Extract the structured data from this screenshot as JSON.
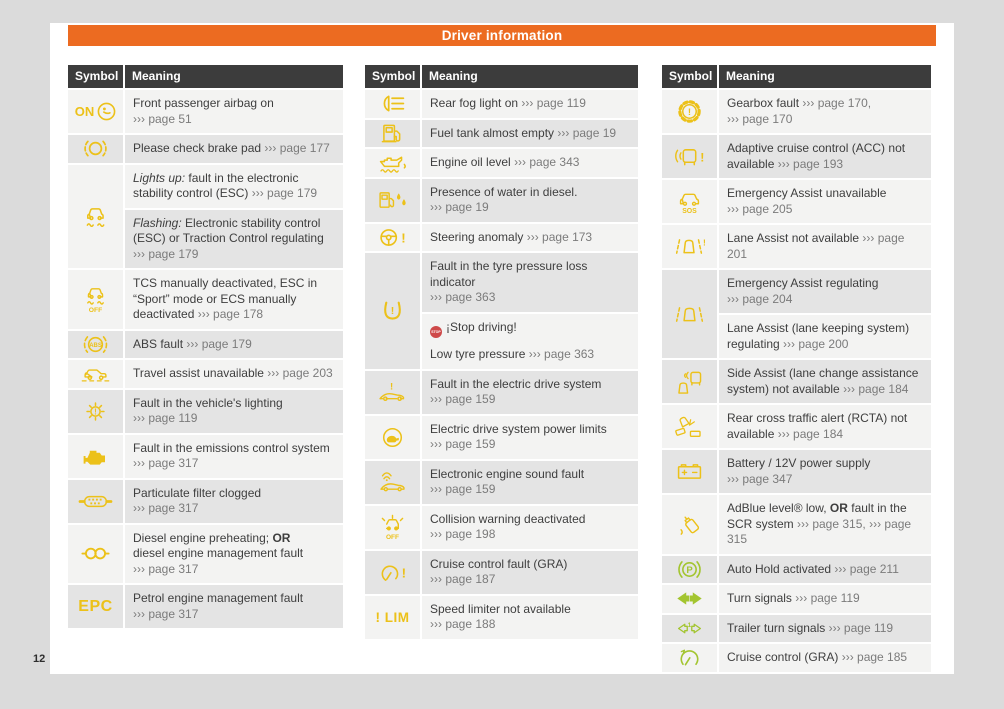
{
  "page": {
    "header": "Driver information",
    "page_number": "12",
    "colors": {
      "bg": "#dbdbdb",
      "orange": "#ec6b21",
      "headerbg": "#3c3c3c",
      "yellow": "#ecc119",
      "green": "#a3c530",
      "red": "#ce4949",
      "rowa": "#f3f3f2",
      "rowb": "#e4e4e4",
      "text": "#3e3e3e",
      "ref": "#7b7b7b"
    }
  },
  "tables": [
    {
      "headers": {
        "symbol": "Symbol",
        "meaning": "Meaning"
      },
      "rows": [
        {
          "icon": "airbag-on-icon",
          "subs": [
            {
              "shade": "a",
              "parts": [
                {
                  "t": "Front passenger airbag on"
                },
                {
                  "br": true
                },
                {
                  "t": "››› page 51",
                  "s": "r"
                }
              ]
            }
          ]
        },
        {
          "icon": "brake-pad-icon",
          "subs": [
            {
              "shade": "b",
              "parts": [
                {
                  "t": "Please check brake pad "
                },
                {
                  "t": "››› page 177",
                  "s": "r"
                }
              ]
            }
          ]
        },
        {
          "icon": "esc-icon",
          "subs": [
            {
              "shade": "a",
              "parts": [
                {
                  "t": "Lights up:",
                  "s": "i"
                },
                {
                  "t": " fault in the electronic stability control (ESC) "
                },
                {
                  "t": "››› page 179",
                  "s": "r"
                }
              ]
            },
            {
              "shade": "b",
              "parts": [
                {
                  "t": "Flashing:",
                  "s": "i"
                },
                {
                  "t": " Electronic stability control (ESC) or Traction Control regulating"
                },
                {
                  "br": true
                },
                {
                  "t": "››› page 179",
                  "s": "r"
                }
              ]
            }
          ]
        },
        {
          "icon": "esc-off-icon",
          "subs": [
            {
              "shade": "a",
              "parts": [
                {
                  "t": "TCS manually deactivated, ESC in “Sport” mode or ECS manually deactivated "
                },
                {
                  "t": "››› page 178",
                  "s": "r"
                }
              ]
            }
          ]
        },
        {
          "icon": "abs-icon",
          "subs": [
            {
              "shade": "b",
              "parts": [
                {
                  "t": "ABS fault "
                },
                {
                  "t": "››› page 179",
                  "s": "r"
                }
              ]
            }
          ]
        },
        {
          "icon": "travel-assist-icon",
          "subs": [
            {
              "shade": "a",
              "parts": [
                {
                  "t": "Travel assist unavailable "
                },
                {
                  "t": "››› page 203",
                  "s": "r"
                }
              ]
            }
          ]
        },
        {
          "icon": "lighting-fault-icon",
          "subs": [
            {
              "shade": "b",
              "parts": [
                {
                  "t": "Fault in the vehicle's lighting"
                },
                {
                  "br": true
                },
                {
                  "t": "››› page 119",
                  "s": "r"
                }
              ]
            }
          ]
        },
        {
          "icon": "engine-icon",
          "subs": [
            {
              "shade": "a",
              "parts": [
                {
                  "t": "Fault in the emissions control system"
                },
                {
                  "br": true
                },
                {
                  "t": "››› page 317",
                  "s": "r"
                }
              ]
            }
          ]
        },
        {
          "icon": "particulate-filter-icon",
          "subs": [
            {
              "shade": "b",
              "parts": [
                {
                  "t": "Particulate filter clogged"
                },
                {
                  "br": true
                },
                {
                  "t": "››› page 317",
                  "s": "r"
                }
              ]
            }
          ]
        },
        {
          "icon": "glow-plug-icon",
          "subs": [
            {
              "shade": "a",
              "parts": [
                {
                  "t": "Diesel engine preheating; "
                },
                {
                  "t": "OR",
                  "s": "b"
                },
                {
                  "br": true
                },
                {
                  "t": "diesel engine management fault"
                },
                {
                  "br": true
                },
                {
                  "t": "››› page 317",
                  "s": "r"
                }
              ]
            }
          ]
        },
        {
          "icon": "epc-icon",
          "subs": [
            {
              "shade": "b",
              "parts": [
                {
                  "t": "Petrol engine management fault"
                },
                {
                  "br": true
                },
                {
                  "t": "››› page 317",
                  "s": "r"
                }
              ]
            }
          ]
        }
      ]
    },
    {
      "headers": {
        "symbol": "Symbol",
        "meaning": "Meaning"
      },
      "rows": [
        {
          "icon": "rear-fog-icon",
          "subs": [
            {
              "shade": "a",
              "parts": [
                {
                  "t": "Rear fog light on "
                },
                {
                  "t": "››› page 119",
                  "s": "r"
                }
              ]
            }
          ]
        },
        {
          "icon": "fuel-icon",
          "subs": [
            {
              "shade": "b",
              "parts": [
                {
                  "t": "Fuel tank almost empty "
                },
                {
                  "t": "››› page 19",
                  "s": "r"
                }
              ]
            }
          ]
        },
        {
          "icon": "oil-icon",
          "subs": [
            {
              "shade": "a",
              "parts": [
                {
                  "t": "Engine oil level "
                },
                {
                  "t": "››› page 343",
                  "s": "r"
                }
              ]
            }
          ]
        },
        {
          "icon": "water-diesel-icon",
          "subs": [
            {
              "shade": "b",
              "parts": [
                {
                  "t": "Presence of water in diesel."
                },
                {
                  "br": true
                },
                {
                  "t": "››› page 19",
                  "s": "r"
                }
              ]
            }
          ]
        },
        {
          "icon": "steering-fault-icon",
          "subs": [
            {
              "shade": "a",
              "parts": [
                {
                  "t": "Steering anomaly "
                },
                {
                  "t": "››› page 173",
                  "s": "r"
                }
              ]
            }
          ]
        },
        {
          "icon": "tpms-icon",
          "subs": [
            {
              "shade": "b",
              "parts": [
                {
                  "t": "Fault in the tyre pressure loss indicator"
                },
                {
                  "br": true
                },
                {
                  "t": "››› page 363",
                  "s": "r"
                }
              ]
            },
            {
              "shade": "a",
              "parts": [
                {
                  "badge": "STOP"
                },
                {
                  "t": "¡Stop driving!"
                },
                {
                  "para": true
                },
                {
                  "t": "Low tyre pressure "
                },
                {
                  "t": "››› page 363",
                  "s": "r"
                }
              ]
            }
          ]
        },
        {
          "icon": "ev-fault-icon",
          "subs": [
            {
              "shade": "b",
              "parts": [
                {
                  "t": "Fault in the electric drive system"
                },
                {
                  "br": true
                },
                {
                  "t": "››› page 159",
                  "s": "r"
                }
              ]
            }
          ]
        },
        {
          "icon": "turtle-icon",
          "subs": [
            {
              "shade": "a",
              "parts": [
                {
                  "t": "Electric drive system power limits"
                },
                {
                  "br": true
                },
                {
                  "t": "››› page 159",
                  "s": "r"
                }
              ]
            }
          ]
        },
        {
          "icon": "engine-sound-icon",
          "subs": [
            {
              "shade": "b",
              "parts": [
                {
                  "t": "Electronic engine sound fault"
                },
                {
                  "br": true
                },
                {
                  "t": "››› page 159",
                  "s": "r"
                }
              ]
            }
          ]
        },
        {
          "icon": "collision-off-icon",
          "subs": [
            {
              "shade": "a",
              "parts": [
                {
                  "t": "Collision warning deactivated"
                },
                {
                  "br": true
                },
                {
                  "t": "››› page 198",
                  "s": "r"
                }
              ]
            }
          ]
        },
        {
          "icon": "cruise-fault-icon",
          "subs": [
            {
              "shade": "b",
              "parts": [
                {
                  "t": "Cruise control fault (GRA)"
                },
                {
                  "br": true
                },
                {
                  "t": "››› page 187",
                  "s": "r"
                }
              ]
            }
          ]
        },
        {
          "icon": "lim-icon",
          "subs": [
            {
              "shade": "a",
              "parts": [
                {
                  "t": "Speed limiter not available"
                },
                {
                  "br": true
                },
                {
                  "t": "››› page 188",
                  "s": "r"
                }
              ]
            }
          ]
        }
      ]
    },
    {
      "headers": {
        "symbol": "Symbol",
        "meaning": "Meaning"
      },
      "rows": [
        {
          "icon": "gearbox-fault-icon",
          "subs": [
            {
              "shade": "a",
              "parts": [
                {
                  "t": "Gearbox fault "
                },
                {
                  "t": "››› page 170,",
                  "s": "r"
                },
                {
                  "br": true
                },
                {
                  "t": "››› page 170",
                  "s": "r"
                }
              ]
            }
          ]
        },
        {
          "icon": "acc-icon",
          "subs": [
            {
              "shade": "b",
              "parts": [
                {
                  "t": "Adaptive cruise control (ACC) not available "
                },
                {
                  "t": "››› page 193",
                  "s": "r"
                }
              ]
            }
          ]
        },
        {
          "icon": "sos-icon",
          "subs": [
            {
              "shade": "a",
              "parts": [
                {
                  "t": "Emergency Assist unavailable"
                },
                {
                  "br": true
                },
                {
                  "t": "››› page 205",
                  "s": "r"
                }
              ]
            }
          ]
        },
        {
          "icon": "lane-assist-na-icon",
          "subs": [
            {
              "shade": "a",
              "parts": [
                {
                  "t": "Lane Assist not available "
                },
                {
                  "t": "››› page 201",
                  "s": "r"
                }
              ]
            }
          ]
        },
        {
          "icon": "lane-assist-icon",
          "subs": [
            {
              "shade": "b",
              "parts": [
                {
                  "t": "Emergency Assist regulating"
                },
                {
                  "br": true
                },
                {
                  "t": "››› page 204",
                  "s": "r"
                }
              ]
            },
            {
              "shade": "a",
              "parts": [
                {
                  "t": "Lane Assist (lane keeping system) regulating "
                },
                {
                  "t": "››› page 200",
                  "s": "r"
                }
              ]
            }
          ]
        },
        {
          "icon": "side-assist-icon",
          "subs": [
            {
              "shade": "b",
              "parts": [
                {
                  "t": "Side Assist (lane change assistance system) not available "
                },
                {
                  "t": "››› page 184",
                  "s": "r"
                }
              ]
            }
          ]
        },
        {
          "icon": "rcta-icon",
          "subs": [
            {
              "shade": "a",
              "parts": [
                {
                  "t": "Rear cross traffic alert (RCTA) not available "
                },
                {
                  "t": "››› page 184",
                  "s": "r"
                }
              ]
            }
          ]
        },
        {
          "icon": "battery-icon",
          "subs": [
            {
              "shade": "b",
              "parts": [
                {
                  "t": "Battery / 12V power supply"
                },
                {
                  "br": true
                },
                {
                  "t": "››› page 347",
                  "s": "r"
                }
              ]
            }
          ]
        },
        {
          "icon": "adblue-icon",
          "subs": [
            {
              "shade": "a",
              "parts": [
                {
                  "t": "AdBlue level® low, "
                },
                {
                  "t": "OR",
                  "s": "b"
                },
                {
                  "t": " fault in the SCR system "
                },
                {
                  "t": "››› page 315,",
                  "s": "r"
                },
                {
                  "t": " "
                },
                {
                  "t": "››› page 315",
                  "s": "r"
                }
              ]
            }
          ]
        },
        {
          "icon": "auto-hold-icon",
          "color": "green",
          "subs": [
            {
              "shade": "b",
              "parts": [
                {
                  "t": "Auto Hold activated "
                },
                {
                  "t": "››› page 211",
                  "s": "r"
                }
              ]
            }
          ]
        },
        {
          "icon": "turn-signals-icon",
          "color": "green",
          "subs": [
            {
              "shade": "a",
              "parts": [
                {
                  "t": "Turn signals "
                },
                {
                  "t": "››› page 119",
                  "s": "r"
                }
              ]
            }
          ]
        },
        {
          "icon": "trailer-turn-icon",
          "color": "green",
          "subs": [
            {
              "shade": "b",
              "parts": [
                {
                  "t": "Trailer turn signals "
                },
                {
                  "t": "››› page 119",
                  "s": "r"
                }
              ]
            }
          ]
        },
        {
          "icon": "cruise-icon",
          "color": "green",
          "subs": [
            {
              "shade": "a",
              "parts": [
                {
                  "t": "Cruise control (GRA) "
                },
                {
                  "t": "››› page 185",
                  "s": "r"
                }
              ]
            }
          ]
        }
      ]
    }
  ]
}
